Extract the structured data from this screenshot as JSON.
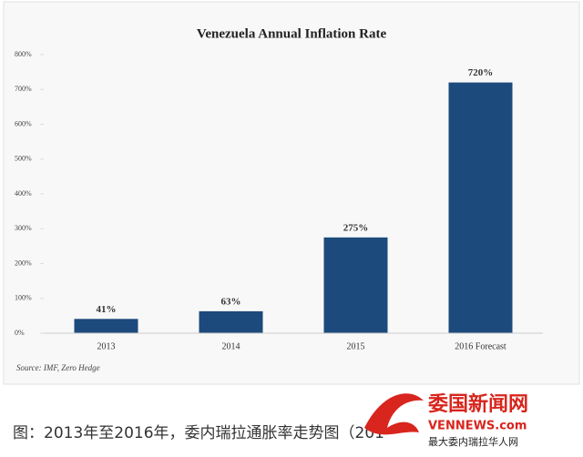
{
  "chart_data": {
    "type": "bar",
    "title": "Venezuela Annual Inflation Rate",
    "categories": [
      "2013",
      "2014",
      "2015",
      "2016 Forecast"
    ],
    "values": [
      41,
      63,
      275,
      720
    ],
    "value_labels": [
      "41%",
      "63%",
      "275%",
      "720%"
    ],
    "color": "#1d4a7c",
    "ylim": [
      0,
      800
    ],
    "yticks": [
      {
        "value": 0,
        "label": "0%"
      },
      {
        "value": 100,
        "label": "100%"
      },
      {
        "value": 200,
        "label": "200%"
      },
      {
        "value": 300,
        "label": "300%"
      },
      {
        "value": 400,
        "label": "400%"
      },
      {
        "value": 500,
        "label": "500%"
      },
      {
        "value": 600,
        "label": "600%"
      },
      {
        "value": 700,
        "label": "700%"
      },
      {
        "value": 800,
        "label": "800%"
      }
    ],
    "source": "Source: IMF, Zero Hedge"
  },
  "caption": "图：2013年至2016年，委内瑞拉通胀率走势图（201",
  "watermark": {
    "name": "委国新闻网",
    "site": "VENNEWS.com",
    "slogan": "最大委内瑞拉华人网"
  }
}
